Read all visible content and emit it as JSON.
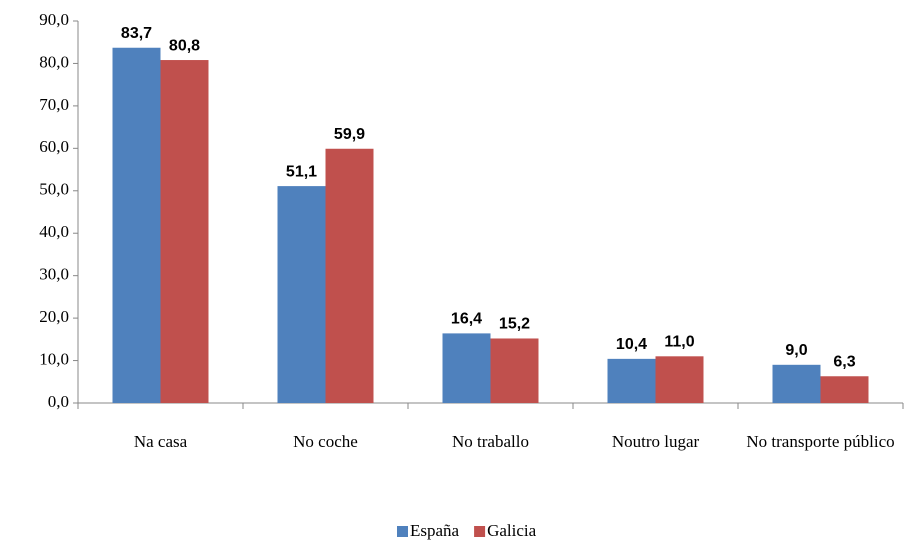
{
  "chart_data": {
    "type": "bar",
    "categories": [
      "Na casa",
      "No coche",
      "No traballo",
      "Noutro lugar",
      "No transporte público"
    ],
    "series": [
      {
        "name": "España",
        "color": "#4f81bd",
        "values": [
          83.7,
          51.1,
          16.4,
          10.4,
          9.0
        ],
        "value_labels": [
          "83,7",
          "51,1",
          "16,4",
          "10,4",
          "9,0"
        ]
      },
      {
        "name": "Galicia",
        "color": "#c0504d",
        "values": [
          80.8,
          59.9,
          15.2,
          11.0,
          6.3
        ],
        "value_labels": [
          "80,8",
          "59,9",
          "15,2",
          "11,0",
          "6,3"
        ]
      }
    ],
    "ylim": [
      0,
      90
    ],
    "yticks": [
      {
        "value": 0,
        "label": "0,0"
      },
      {
        "value": 10,
        "label": "10,0"
      },
      {
        "value": 20,
        "label": "20,0"
      },
      {
        "value": 30,
        "label": "30,0"
      },
      {
        "value": 40,
        "label": "40,0"
      },
      {
        "value": 50,
        "label": "50,0"
      },
      {
        "value": 60,
        "label": "60,0"
      },
      {
        "value": 70,
        "label": "70,0"
      },
      {
        "value": 80,
        "label": "80,0"
      },
      {
        "value": 90,
        "label": "90,0"
      }
    ],
    "legend": "bottom"
  }
}
